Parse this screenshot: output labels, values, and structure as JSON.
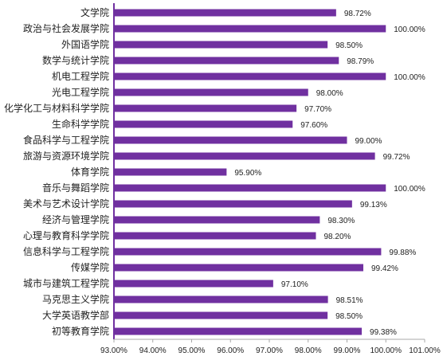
{
  "chart_data": {
    "type": "bar",
    "orientation": "horizontal",
    "categories": [
      "文学院",
      "政治与社会发展学院",
      "外国语学院",
      "数学与统计学院",
      "机电工程学院",
      "光电工程学院",
      "化学化工与材料科学学院",
      "生命科学学院",
      "食品科学与工程学院",
      "旅游与资源环境学院",
      "体育学院",
      "音乐与舞蹈学院",
      "美术与艺术设计学院",
      "经济与管理学院",
      "心理与教育科学学院",
      "信息科学与工程学院",
      "传媒学院",
      "城市与建筑工程学院",
      "马克思主义学院",
      "大学英语教学部",
      "初等教育学院"
    ],
    "values": [
      98.72,
      100.0,
      98.5,
      98.79,
      100.0,
      98.0,
      97.7,
      97.6,
      99.0,
      99.72,
      95.9,
      100.0,
      99.13,
      98.3,
      98.2,
      99.88,
      99.42,
      97.1,
      98.51,
      98.5,
      99.38
    ],
    "value_labels": [
      "98.72%",
      "100.00%",
      "98.50%",
      "98.79%",
      "100.00%",
      "98.00%",
      "97.70%",
      "97.60%",
      "99.00%",
      "99.72%",
      "95.90%",
      "100.00%",
      "99.13%",
      "98.30%",
      "98.20%",
      "99.88%",
      "99.42%",
      "97.10%",
      "98.51%",
      "98.50%",
      "99.38%"
    ],
    "x_ticks": [
      93,
      94,
      95,
      96,
      97,
      98,
      99,
      100,
      101
    ],
    "x_tick_labels": [
      "93.00%",
      "94.00%",
      "95.00%",
      "96.00%",
      "97.00%",
      "98.00%",
      "99.00%",
      "100.00%",
      "101.00%"
    ],
    "xlim": [
      93,
      101
    ],
    "title": "",
    "xlabel": "",
    "ylabel": "",
    "grid": false,
    "legend": "none",
    "bar_color": "#7030A0",
    "axis_color": "#7030A0"
  }
}
